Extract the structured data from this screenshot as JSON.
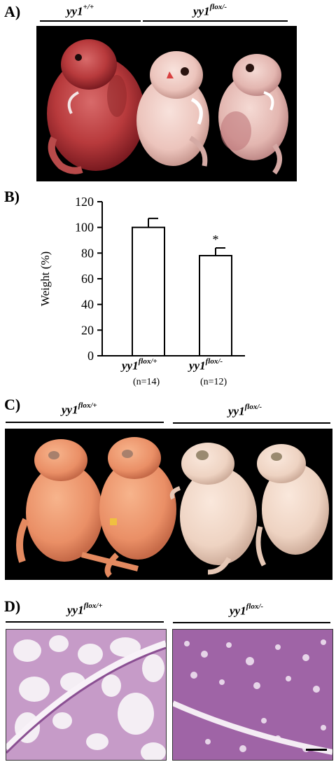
{
  "panelA": {
    "letter": "A)",
    "groups": [
      {
        "base": "yy1",
        "sup": "+/+"
      },
      {
        "base": "yy1",
        "sup": "flox/-"
      }
    ]
  },
  "panelB": {
    "letter": "B)"
  },
  "chart_data": {
    "type": "bar",
    "ylabel": "Weight (%)",
    "ylim": [
      0,
      120
    ],
    "yticks": [
      0,
      20,
      40,
      60,
      80,
      100,
      120
    ],
    "categories": [
      {
        "base": "yy1",
        "sup": "flox/+",
        "n": "(n=14)"
      },
      {
        "base": "yy1",
        "sup": "flox/-",
        "n": "(n=12)"
      }
    ],
    "values": [
      100,
      78
    ],
    "errors": [
      7,
      6
    ],
    "significance": [
      "",
      "*"
    ],
    "grid": false,
    "bar_fill": "#ffffff"
  },
  "panelC": {
    "letter": "C)",
    "groups": [
      {
        "base": "yy1",
        "sup": "flox/+"
      },
      {
        "base": "yy1",
        "sup": "flox/-"
      }
    ]
  },
  "panelD": {
    "letter": "D)",
    "groups": [
      {
        "base": "yy1",
        "sup": "flox/+"
      },
      {
        "base": "yy1",
        "sup": "flox/-"
      }
    ]
  }
}
